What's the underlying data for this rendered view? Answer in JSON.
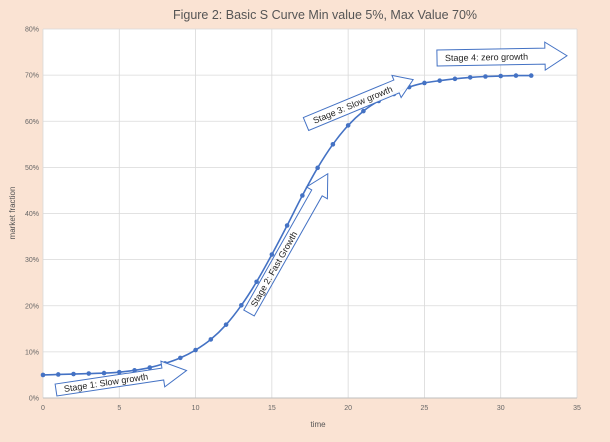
{
  "chart_data": {
    "type": "line",
    "title": "Figure 2: Basic S Curve Min value 5%, Max Value 70%",
    "xlabel": "time",
    "ylabel": "market fraction",
    "xlim": [
      0,
      35
    ],
    "ylim": [
      0,
      80
    ],
    "x_ticks": [
      "0",
      "5",
      "10",
      "15",
      "20",
      "25",
      "30",
      "35"
    ],
    "y_ticks": [
      "0%",
      "10%",
      "20%",
      "30%",
      "40%",
      "50%",
      "60%",
      "70%",
      "80%"
    ],
    "grid": true,
    "legend": "none",
    "series": [
      {
        "color": "#4472C4",
        "marker": "circle",
        "smooth": true,
        "x": [
          0,
          1,
          2,
          3,
          4,
          5,
          6,
          7,
          8,
          9,
          10,
          11,
          12,
          13,
          14,
          15,
          16,
          17,
          18,
          19,
          20,
          21,
          22,
          23,
          24,
          25,
          26,
          27,
          28,
          29,
          30,
          31,
          32
        ],
        "y": [
          5.0,
          5.1,
          5.2,
          5.3,
          5.4,
          5.6,
          6.0,
          6.6,
          7.5,
          8.7,
          10.4,
          12.7,
          15.9,
          20.1,
          25.2,
          31.1,
          37.4,
          43.9,
          49.9,
          55.0,
          59.1,
          62.2,
          64.4,
          65.9,
          67.4,
          68.3,
          68.8,
          69.2,
          69.5,
          69.7,
          69.8,
          69.9,
          69.9
        ]
      }
    ],
    "annotations": [
      {
        "text": "Stage 1: Slow growth",
        "shape": "block-arrow"
      },
      {
        "text": "Stage 2: Fast Growth",
        "shape": "block-arrow"
      },
      {
        "text": "Stage 3: Slow growth",
        "shape": "block-arrow"
      },
      {
        "text": "Stage 4: zero growth",
        "shape": "block-arrow"
      }
    ],
    "colors": {
      "background": "#FAE3D3",
      "plot_area": "#FFFFFF",
      "grid": "#D9D9D9",
      "series": "#4472C4"
    }
  }
}
